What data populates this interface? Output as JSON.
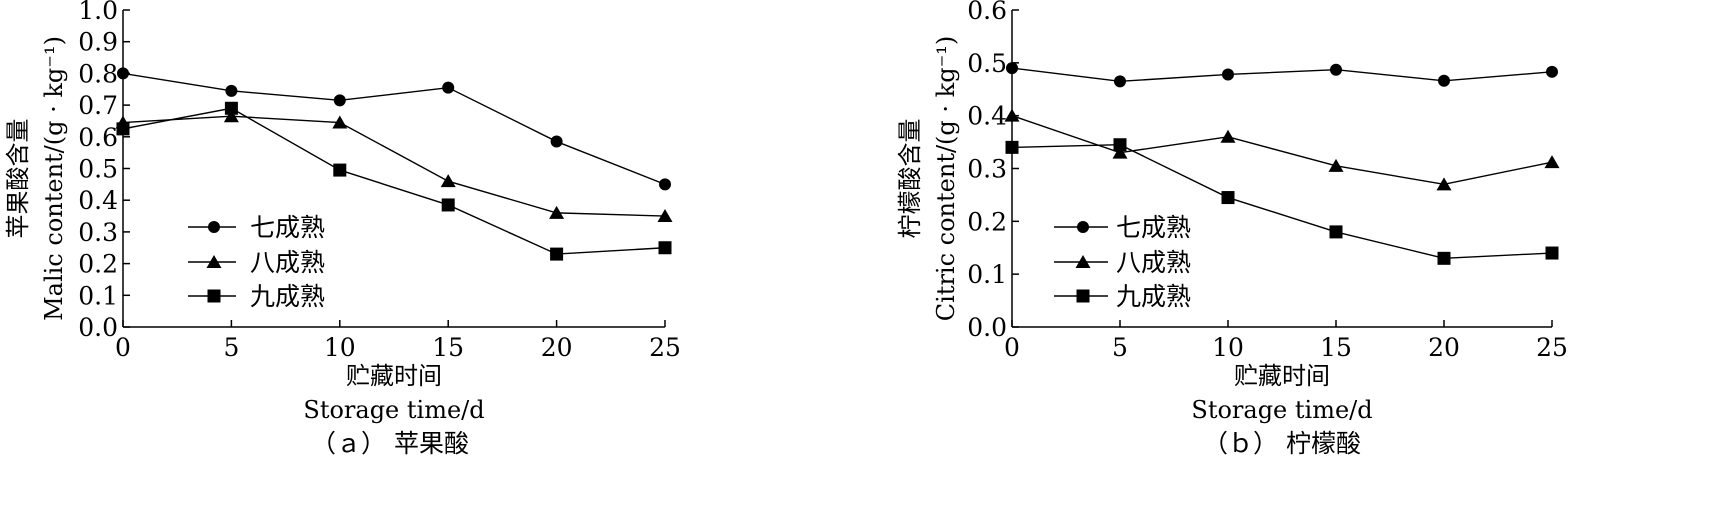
{
  "chart_data": [
    {
      "type": "line",
      "caption": "（ａ） 苹果酸",
      "xlabel_cn": "贮藏时间",
      "xlabel_en": "Storage time/d",
      "ylabel_cn": "苹果酸含量",
      "ylabel_en": "Malic content/(g · kg⁻¹)",
      "x": [
        0,
        5,
        10,
        15,
        20,
        25
      ],
      "xlim": [
        0,
        25
      ],
      "ylim": [
        0,
        1.0
      ],
      "xticks": [
        0,
        5,
        10,
        15,
        20,
        25
      ],
      "yticks": [
        0.0,
        0.1,
        0.2,
        0.3,
        0.4,
        0.5,
        0.6,
        0.7,
        0.8,
        0.9,
        1.0
      ],
      "grid": false,
      "legend_position": "lower-left",
      "series": [
        {
          "name": "七成熟",
          "marker": "circle",
          "values": [
            0.8,
            0.745,
            0.715,
            0.755,
            0.585,
            0.45
          ]
        },
        {
          "name": "八成熟",
          "marker": "triangle",
          "values": [
            0.645,
            0.665,
            0.645,
            0.46,
            0.36,
            0.35
          ]
        },
        {
          "name": "九成熟",
          "marker": "square",
          "values": [
            0.625,
            0.69,
            0.495,
            0.385,
            0.23,
            0.25
          ]
        }
      ]
    },
    {
      "type": "line",
      "caption": "（ｂ） 柠檬酸",
      "xlabel_cn": "贮藏时间",
      "xlabel_en": "Storage time/d",
      "ylabel_cn": "柠檬酸含量",
      "ylabel_en": "Citric content/(g · kg⁻¹)",
      "x": [
        0,
        5,
        10,
        15,
        20,
        25
      ],
      "xlim": [
        0,
        25
      ],
      "ylim": [
        0,
        0.6
      ],
      "xticks": [
        0,
        5,
        10,
        15,
        20,
        25
      ],
      "yticks": [
        0.0,
        0.1,
        0.2,
        0.3,
        0.4,
        0.5,
        0.6
      ],
      "grid": false,
      "legend_position": "lower-left",
      "series": [
        {
          "name": "七成熟",
          "marker": "circle",
          "values": [
            0.49,
            0.465,
            0.478,
            0.487,
            0.466,
            0.483
          ]
        },
        {
          "name": "八成熟",
          "marker": "triangle",
          "values": [
            0.4,
            0.33,
            0.36,
            0.305,
            0.27,
            0.312
          ]
        },
        {
          "name": "九成熟",
          "marker": "square",
          "values": [
            0.34,
            0.345,
            0.245,
            0.18,
            0.13,
            0.14
          ]
        }
      ]
    }
  ]
}
